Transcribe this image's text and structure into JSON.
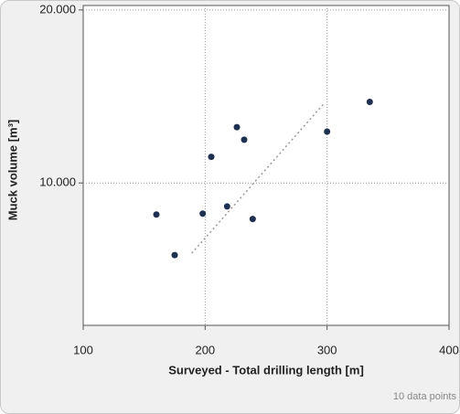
{
  "chart_data": {
    "type": "scatter",
    "x_label": "Surveyed - Total drilling length [m]",
    "y_label": "Muck volume [m³]",
    "footer": "10 data points",
    "xlim": [
      100,
      400
    ],
    "xticks": [
      100,
      200,
      300,
      400
    ],
    "ylim": [
      1770,
      20260
    ],
    "yticks": [
      {
        "value": 10000,
        "label": "10.000"
      },
      {
        "value": 20000,
        "label": "20.000"
      }
    ],
    "grid": true,
    "series": [
      {
        "color": "#1f2f4f",
        "x": [
          160,
          175,
          198,
          205,
          218,
          226,
          232,
          239,
          300,
          335
        ],
        "values": [
          8177,
          5833,
          8229,
          11510,
          8646,
          13229,
          12500,
          7917,
          12969,
          14688
        ]
      }
    ],
    "trendline": {
      "color": "#999999",
      "x": [
        189,
        298
      ],
      "values": [
        5938,
        14635
      ]
    }
  }
}
